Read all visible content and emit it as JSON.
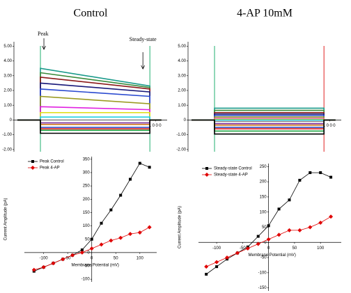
{
  "chart_data": [
    {
      "type": "line",
      "title": "Control",
      "annotations": [
        "Peak",
        "Steady-state"
      ],
      "x": [
        -200,
        0,
        0,
        950,
        950,
        1050
      ],
      "xlim": [
        -230,
        1100
      ],
      "xticks": [
        1000
      ],
      "ylim": [
        -2.15,
        5.3
      ],
      "yticks": [
        {
          "value": 5,
          "label": "5.00"
        },
        {
          "value": 4,
          "label": "4.00"
        },
        {
          "value": 3,
          "label": "3.00"
        },
        {
          "value": 2,
          "label": "2.00"
        },
        {
          "value": 1,
          "label": "1.00"
        },
        0,
        {
          "value": -1,
          "label": "-1.00"
        },
        {
          "value": -2,
          "label": "-2.00"
        }
      ],
      "series": [
        {
          "color": "#1a9a8a",
          "values": [
            0,
            0,
            3.5,
            2.3,
            0,
            0
          ]
        },
        {
          "color": "#3a8a3a",
          "values": [
            0,
            0,
            3.2,
            2.2,
            0,
            0
          ]
        },
        {
          "color": "#8b1a1a",
          "values": [
            0,
            0,
            2.9,
            2.1,
            0,
            0
          ]
        },
        {
          "color": "#1a1a7a",
          "values": [
            0,
            0,
            2.5,
            1.9,
            0,
            0
          ]
        },
        {
          "color": "#2a4ad0",
          "values": [
            0,
            0,
            2.1,
            1.6,
            0,
            0
          ]
        },
        {
          "color": "#9a9a20",
          "values": [
            0,
            0,
            1.6,
            1.1,
            0,
            0
          ]
        },
        {
          "color": "#e020e0",
          "values": [
            0,
            0,
            0.9,
            0.7,
            0,
            0
          ]
        },
        {
          "color": "#e0e020",
          "values": [
            0,
            0,
            0.5,
            0.5,
            0,
            0
          ]
        },
        {
          "color": "#20d0e0",
          "values": [
            0,
            0,
            0.2,
            0.2,
            0,
            0
          ]
        },
        {
          "color": "#888888",
          "values": [
            0,
            0,
            0,
            0,
            0,
            0
          ]
        },
        {
          "color": "#7a2a9a",
          "values": [
            0,
            0,
            -0.2,
            -0.2,
            0,
            0
          ]
        },
        {
          "color": "#d07a20",
          "values": [
            0,
            0,
            -0.3,
            -0.3,
            0,
            0
          ]
        },
        {
          "color": "#2040c0",
          "values": [
            0,
            0,
            -0.5,
            -0.5,
            0,
            0
          ]
        },
        {
          "color": "#e02020",
          "values": [
            0,
            0,
            -0.6,
            -0.6,
            0,
            0
          ]
        },
        {
          "color": "#20a040",
          "values": [
            0,
            0,
            -0.7,
            -0.7,
            0,
            0
          ]
        },
        {
          "color": "#000000",
          "values": [
            0,
            0,
            -0.9,
            -0.9,
            0,
            0
          ]
        }
      ]
    },
    {
      "type": "line",
      "title": "4-AP 10mM",
      "x": [
        -200,
        0,
        0,
        950,
        950,
        1050
      ],
      "xlim": [
        -230,
        1100
      ],
      "xticks": [
        1000
      ],
      "ylim": [
        -2.15,
        5.3
      ],
      "yticks": [
        {
          "value": 5,
          "label": "5.00"
        },
        {
          "value": 4,
          "label": "4.00"
        },
        {
          "value": 3,
          "label": "3.00"
        },
        {
          "value": 2,
          "label": "2.00"
        },
        {
          "value": 1,
          "label": "1.00"
        },
        0,
        {
          "value": -1,
          "label": "-1.00"
        },
        {
          "value": -2,
          "label": "-2.00"
        }
      ],
      "series": [
        {
          "color": "#1a9a8a",
          "values": [
            0,
            0,
            0.8,
            0.8,
            0,
            0
          ]
        },
        {
          "color": "#3a8a3a",
          "values": [
            0,
            0,
            0.65,
            0.65,
            0,
            0
          ]
        },
        {
          "color": "#8b1a1a",
          "values": [
            0,
            0,
            0.5,
            0.5,
            0,
            0
          ]
        },
        {
          "color": "#1a1a7a",
          "values": [
            0,
            0,
            0.4,
            0.4,
            0,
            0
          ]
        },
        {
          "color": "#2a4ad0",
          "values": [
            0,
            0,
            0.3,
            0.3,
            0,
            0
          ]
        },
        {
          "color": "#9a9a20",
          "values": [
            0,
            0,
            0.2,
            0.2,
            0,
            0
          ]
        },
        {
          "color": "#e020e0",
          "values": [
            0,
            0,
            0.1,
            0.1,
            0,
            0
          ]
        },
        {
          "color": "#e0e020",
          "values": [
            0,
            0,
            0.05,
            0.05,
            0,
            0
          ]
        },
        {
          "color": "#20d0e0",
          "values": [
            0,
            0,
            0,
            0,
            0,
            0
          ]
        },
        {
          "color": "#888888",
          "values": [
            0,
            0,
            -0.1,
            -0.1,
            0,
            0
          ]
        },
        {
          "color": "#7a2a9a",
          "values": [
            0,
            0,
            -0.25,
            -0.25,
            0,
            0
          ]
        },
        {
          "color": "#d07a20",
          "values": [
            0,
            0,
            -0.35,
            -0.35,
            0,
            0
          ]
        },
        {
          "color": "#2040c0",
          "values": [
            0,
            0,
            -0.5,
            -0.5,
            0,
            0
          ]
        },
        {
          "color": "#e02020",
          "values": [
            0,
            0,
            -0.6,
            -0.6,
            0,
            0
          ]
        },
        {
          "color": "#20a040",
          "values": [
            0,
            0,
            -0.75,
            -0.75,
            0,
            0
          ]
        },
        {
          "color": "#000000",
          "values": [
            0,
            0,
            -0.95,
            -0.95,
            0,
            0
          ]
        }
      ]
    },
    {
      "type": "line",
      "x_label": "Membrane Potential (mV)",
      "y_label": "Current Amplitude (pA)",
      "axes_at_origin": true,
      "legend": "upper left",
      "x": [
        -120,
        -100,
        -80,
        -60,
        -40,
        -20,
        0,
        20,
        40,
        60,
        80,
        100,
        120
      ],
      "xlim": [
        -140,
        135
      ],
      "xticks": [
        -100,
        -50,
        0,
        50,
        100
      ],
      "ylim": [
        -110,
        360
      ],
      "yticks": [
        -100,
        -50,
        0,
        50,
        100,
        150,
        200,
        250,
        300,
        350
      ],
      "series": [
        {
          "name": "Peak Control",
          "color": "#000000",
          "marker": "square",
          "values": [
            -70,
            -55,
            -40,
            -25,
            -10,
            10,
            50,
            110,
            160,
            215,
            275,
            335,
            320
          ]
        },
        {
          "name": "Peak 4-AP",
          "color": "#e00000",
          "marker": "diamond",
          "values": [
            -65,
            -55,
            -40,
            -25,
            -10,
            0,
            15,
            30,
            45,
            55,
            70,
            75,
            95
          ]
        }
      ]
    },
    {
      "type": "line",
      "x_label": "Membrane Potential (mV)",
      "y_label": "Current Amplitude (pA)",
      "axes_at_origin": true,
      "legend": "upper left",
      "x": [
        -120,
        -100,
        -80,
        -60,
        -40,
        -20,
        0,
        20,
        40,
        60,
        80,
        100,
        120
      ],
      "xlim": [
        -135,
        140
      ],
      "xticks": [
        -100,
        -50,
        0,
        50,
        100
      ],
      "ylim": [
        -160,
        260
      ],
      "yticks": [
        -150,
        -100,
        -50,
        0,
        50,
        100,
        150,
        200,
        250
      ],
      "series": [
        {
          "name": "Steady-state Control",
          "color": "#000000",
          "marker": "square",
          "values": [
            -105,
            -80,
            -55,
            -35,
            -15,
            20,
            55,
            110,
            140,
            205,
            230,
            230,
            215
          ]
        },
        {
          "name": "Steady-state 4-AP",
          "color": "#e00000",
          "marker": "diamond",
          "values": [
            -80,
            -65,
            -50,
            -35,
            -20,
            -5,
            10,
            25,
            40,
            40,
            50,
            65,
            85
          ]
        }
      ]
    }
  ]
}
